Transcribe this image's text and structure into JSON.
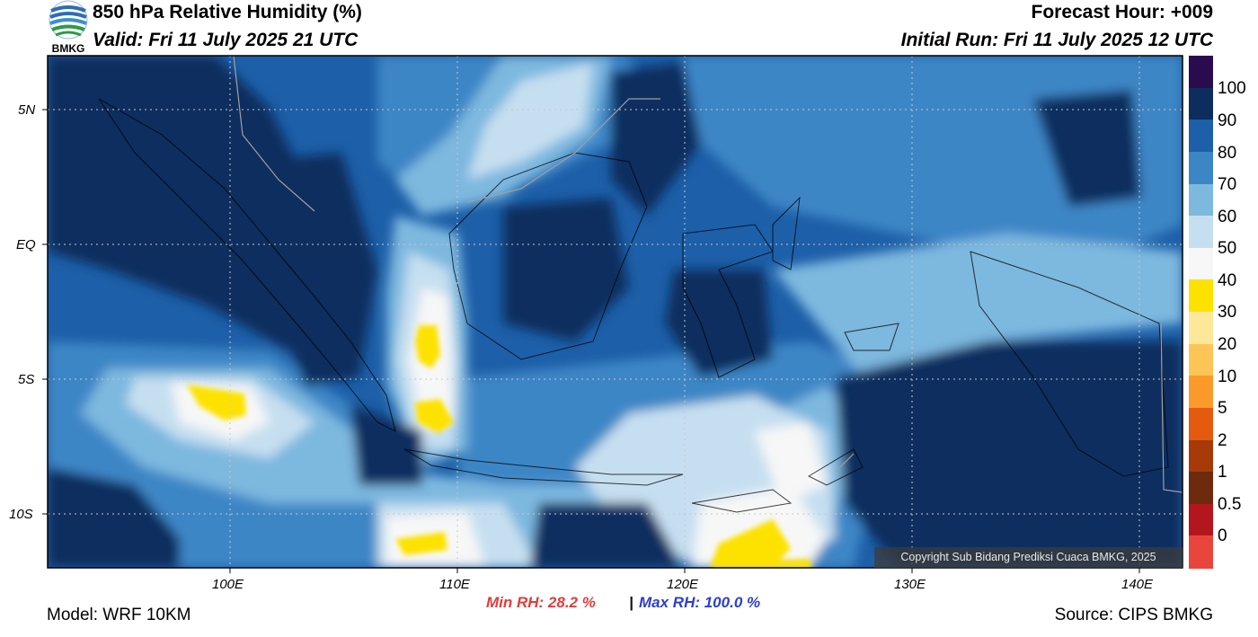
{
  "header": {
    "title": "850 hPa Relative Humidity (%)",
    "valid": "Valid: Fri 11 July 2025 21 UTC",
    "forecast_hour": "Forecast Hour: +009",
    "initial_run": "Initial Run: Fri 11 July 2025 12 UTC",
    "logo_text": "BMKG"
  },
  "axes": {
    "lat_labels": [
      "5N",
      "EQ",
      "5S",
      "10S"
    ],
    "lon_labels": [
      "100E",
      "110E",
      "120E",
      "130E",
      "140E"
    ]
  },
  "colorbar": {
    "labels": [
      "100",
      "90",
      "80",
      "70",
      "60",
      "50",
      "40",
      "30",
      "20",
      "10",
      "5",
      "2",
      "1",
      "0.5",
      "0"
    ],
    "colors": [
      "#2a0b4e",
      "#0c2d5e",
      "#1d5fa8",
      "#3d86c6",
      "#7db8df",
      "#c6dff0",
      "#f7f7f7",
      "#fde200",
      "#fde89a",
      "#fdc556",
      "#fb9a2a",
      "#e45a0e",
      "#a63a08",
      "#6e2a0c",
      "#b3161c",
      "#e8453c"
    ]
  },
  "stats": {
    "min_label": "Min RH:  28.2 %",
    "separator": "|",
    "max_label": "Max RH: 100.0 %"
  },
  "footer": {
    "model": "Model: WRF 10KM",
    "source": "Source: CIPS BMKG",
    "copyright": "Copyright Sub Bidang Prediksi Cuaca BMKG, 2025"
  }
}
